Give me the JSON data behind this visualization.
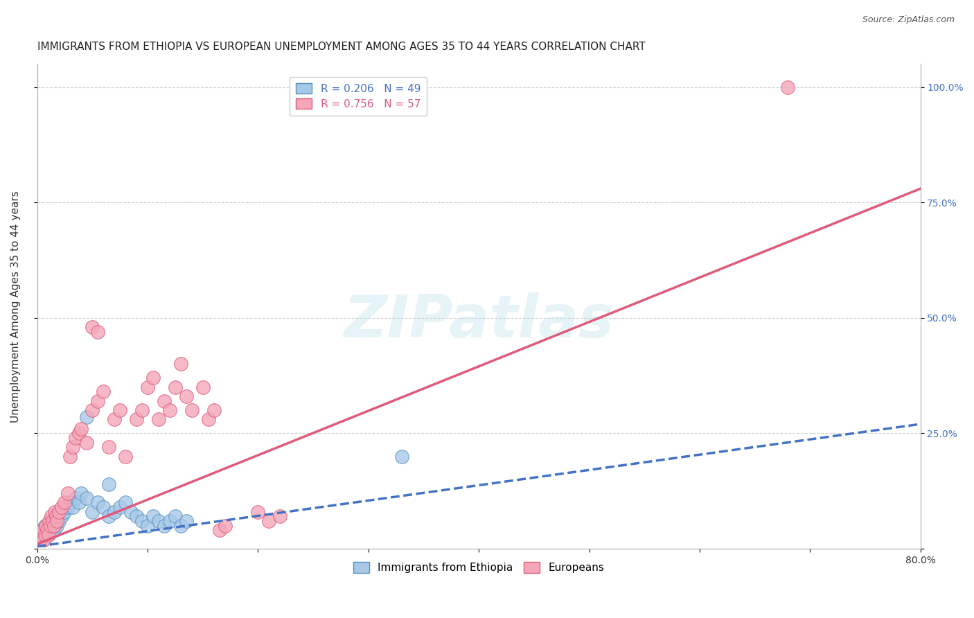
{
  "title": "IMMIGRANTS FROM ETHIOPIA VS EUROPEAN UNEMPLOYMENT AMONG AGES 35 TO 44 YEARS CORRELATION CHART",
  "source": "Source: ZipAtlas.com",
  "ylabel": "Unemployment Among Ages 35 to 44 years",
  "xlim": [
    0.0,
    0.8
  ],
  "ylim": [
    0.0,
    1.05
  ],
  "xtick_positions": [
    0.0,
    0.1,
    0.2,
    0.3,
    0.4,
    0.5,
    0.6,
    0.7,
    0.8
  ],
  "xticklabels": [
    "0.0%",
    "",
    "",
    "",
    "",
    "",
    "",
    "",
    "80.0%"
  ],
  "ytick_positions": [
    0.0,
    0.25,
    0.5,
    0.75,
    1.0
  ],
  "yticklabels_right": [
    "",
    "25.0%",
    "50.0%",
    "75.0%",
    "100.0%"
  ],
  "grid_color": "#cccccc",
  "background_color": "#ffffff",
  "watermark_text": "ZIPatlas",
  "series": [
    {
      "name": "Immigrants from Ethiopia",
      "R": 0.206,
      "N": 49,
      "color": "#a8c8e8",
      "edge_color": "#5591c0",
      "line_color": "#4472c4",
      "line_style": "--",
      "trend_x": [
        0.0,
        0.8
      ],
      "trend_y": [
        0.005,
        0.27
      ],
      "x": [
        0.001,
        0.002,
        0.003,
        0.004,
        0.005,
        0.006,
        0.007,
        0.008,
        0.009,
        0.01,
        0.011,
        0.012,
        0.013,
        0.014,
        0.015,
        0.016,
        0.017,
        0.018,
        0.02,
        0.022,
        0.025,
        0.028,
        0.03,
        0.032,
        0.035,
        0.038,
        0.04,
        0.045,
        0.05,
        0.055,
        0.06,
        0.065,
        0.07,
        0.075,
        0.08,
        0.085,
        0.09,
        0.095,
        0.1,
        0.105,
        0.11,
        0.115,
        0.12,
        0.125,
        0.13,
        0.135,
        0.045,
        0.065,
        0.33
      ],
      "y": [
        0.02,
        0.03,
        0.02,
        0.04,
        0.03,
        0.02,
        0.05,
        0.03,
        0.04,
        0.03,
        0.05,
        0.04,
        0.06,
        0.05,
        0.04,
        0.07,
        0.06,
        0.05,
        0.06,
        0.07,
        0.08,
        0.09,
        0.1,
        0.09,
        0.11,
        0.1,
        0.12,
        0.11,
        0.08,
        0.1,
        0.09,
        0.07,
        0.08,
        0.09,
        0.1,
        0.08,
        0.07,
        0.06,
        0.05,
        0.07,
        0.06,
        0.05,
        0.06,
        0.07,
        0.05,
        0.06,
        0.285,
        0.14,
        0.2
      ]
    },
    {
      "name": "Europeans",
      "R": 0.756,
      "N": 57,
      "color": "#f4a7b9",
      "edge_color": "#e05a7a",
      "line_color": "#e05a7a",
      "line_style": "-",
      "trend_x": [
        0.0,
        0.8
      ],
      "trend_y": [
        0.01,
        0.78
      ],
      "x": [
        0.001,
        0.002,
        0.003,
        0.004,
        0.005,
        0.006,
        0.007,
        0.008,
        0.009,
        0.01,
        0.011,
        0.012,
        0.013,
        0.014,
        0.015,
        0.016,
        0.017,
        0.018,
        0.02,
        0.022,
        0.025,
        0.028,
        0.03,
        0.032,
        0.035,
        0.038,
        0.04,
        0.045,
        0.05,
        0.055,
        0.06,
        0.065,
        0.07,
        0.075,
        0.08,
        0.09,
        0.095,
        0.1,
        0.105,
        0.11,
        0.115,
        0.12,
        0.125,
        0.13,
        0.135,
        0.14,
        0.15,
        0.155,
        0.16,
        0.165,
        0.17,
        0.05,
        0.055,
        0.2,
        0.21,
        0.22,
        0.68
      ],
      "y": [
        0.02,
        0.03,
        0.02,
        0.03,
        0.04,
        0.02,
        0.03,
        0.05,
        0.04,
        0.03,
        0.06,
        0.05,
        0.07,
        0.06,
        0.05,
        0.08,
        0.07,
        0.06,
        0.08,
        0.09,
        0.1,
        0.12,
        0.2,
        0.22,
        0.24,
        0.25,
        0.26,
        0.23,
        0.3,
        0.32,
        0.34,
        0.22,
        0.28,
        0.3,
        0.2,
        0.28,
        0.3,
        0.35,
        0.37,
        0.28,
        0.32,
        0.3,
        0.35,
        0.4,
        0.33,
        0.3,
        0.35,
        0.28,
        0.3,
        0.04,
        0.05,
        0.48,
        0.47,
        0.08,
        0.06,
        0.07,
        1.0
      ]
    }
  ],
  "title_fontsize": 11,
  "axis_label_fontsize": 11,
  "tick_fontsize": 10,
  "legend_fontsize": 11
}
